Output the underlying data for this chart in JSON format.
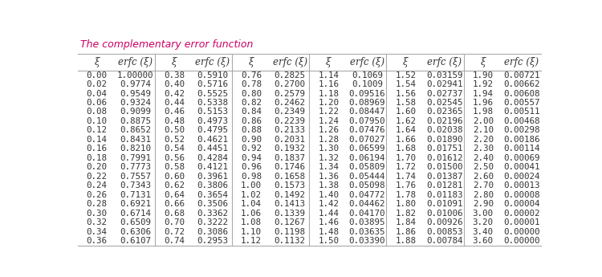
{
  "title": "The complementary error function",
  "title_color": "#cc0066",
  "columns": [
    [
      0.0,
      0.02,
      0.04,
      0.06,
      0.08,
      0.1,
      0.12,
      0.14,
      0.16,
      0.18,
      0.2,
      0.22,
      0.24,
      0.26,
      0.28,
      0.3,
      0.32,
      0.34,
      0.36
    ],
    [
      1.0,
      0.9774,
      0.9549,
      0.9324,
      0.9099,
      0.8875,
      0.8652,
      0.8431,
      0.821,
      0.7991,
      0.7773,
      0.7557,
      0.7343,
      0.7131,
      0.6921,
      0.6714,
      0.6509,
      0.6306,
      0.6107
    ],
    [
      0.38,
      0.4,
      0.42,
      0.44,
      0.46,
      0.48,
      0.5,
      0.52,
      0.54,
      0.56,
      0.58,
      0.6,
      0.62,
      0.64,
      0.66,
      0.68,
      0.7,
      0.72,
      0.74
    ],
    [
      0.591,
      0.5716,
      0.5525,
      0.5338,
      0.5153,
      0.4973,
      0.4795,
      0.4621,
      0.4451,
      0.4284,
      0.4121,
      0.3961,
      0.3806,
      0.3654,
      0.3506,
      0.3362,
      0.3222,
      0.3086,
      0.2953
    ],
    [
      0.76,
      0.78,
      0.8,
      0.82,
      0.84,
      0.86,
      0.88,
      0.9,
      0.92,
      0.94,
      0.96,
      0.98,
      1.0,
      1.02,
      1.04,
      1.06,
      1.08,
      1.1,
      1.12
    ],
    [
      0.2825,
      0.27,
      0.2579,
      0.2462,
      0.2349,
      0.2239,
      0.2133,
      0.2031,
      0.1932,
      0.1837,
      0.1746,
      0.1658,
      0.1573,
      0.1492,
      0.1413,
      0.1339,
      0.1267,
      0.1198,
      0.1132
    ],
    [
      1.14,
      1.16,
      1.18,
      1.2,
      1.22,
      1.24,
      1.26,
      1.28,
      1.3,
      1.32,
      1.34,
      1.36,
      1.38,
      1.4,
      1.42,
      1.44,
      1.46,
      1.48,
      1.5
    ],
    [
      0.1069,
      0.1009,
      0.09516,
      0.08969,
      0.08447,
      0.0795,
      0.07476,
      0.07027,
      0.06599,
      0.06194,
      0.05809,
      0.05444,
      0.05098,
      0.04772,
      0.04462,
      0.0417,
      0.03895,
      0.03635,
      0.0339
    ],
    [
      1.52,
      1.54,
      1.56,
      1.58,
      1.6,
      1.62,
      1.64,
      1.66,
      1.68,
      1.7,
      1.72,
      1.74,
      1.76,
      1.78,
      1.8,
      1.82,
      1.84,
      1.86,
      1.88
    ],
    [
      0.03159,
      0.02941,
      0.02737,
      0.02545,
      0.02365,
      0.02196,
      0.02038,
      0.0189,
      0.01751,
      0.01612,
      0.015,
      0.01387,
      0.01281,
      0.01183,
      0.01091,
      0.01006,
      0.00926,
      0.00853,
      0.00784
    ],
    [
      1.9,
      1.92,
      1.94,
      1.96,
      1.98,
      2.0,
      2.1,
      2.2,
      2.3,
      2.4,
      2.5,
      2.6,
      2.7,
      2.8,
      2.9,
      3.0,
      3.2,
      3.4,
      3.6
    ],
    [
      0.00721,
      0.00662,
      0.00608,
      0.00557,
      0.00511,
      0.00468,
      0.00298,
      0.00186,
      0.00114,
      0.00069,
      0.00041,
      0.00024,
      0.00013,
      8e-05,
      4e-05,
      2e-05,
      1e-05,
      0.0,
      0.0
    ]
  ],
  "col_headers": [
    "ξ",
    "erfc (ξ)",
    "ξ",
    "erfc (ξ)",
    "ξ",
    "erfc (ξ)",
    "ξ",
    "erfc (ξ)",
    "ξ",
    "erfc (ξ)",
    "ξ",
    "erfc (ξ)"
  ],
  "background_color": "#ffffff",
  "line_color": "#aaaaaa",
  "text_color": "#333333",
  "title_underline_color": "#cc0066"
}
